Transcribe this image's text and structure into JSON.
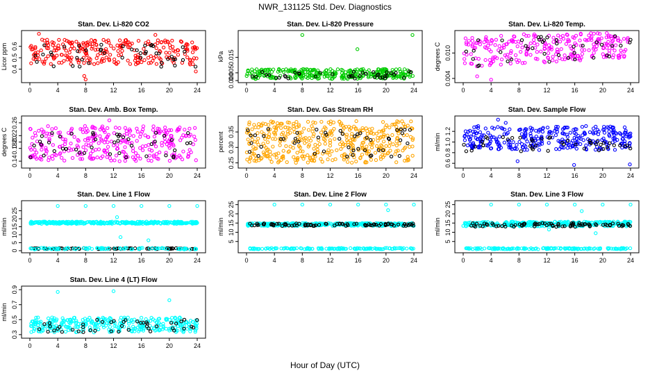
{
  "title": "NWR_131125  Std. Dev. Diagnostics",
  "xlabel": "Hour of Day (UTC)",
  "chart_data": [
    {
      "type": "scatter",
      "title": "Stan. Dev. Li-820 CO2",
      "ylabel": "Licor ppm",
      "color": "#ff0000",
      "xlim": [
        0,
        24
      ],
      "xticks": [
        "0",
        "4",
        "8",
        "12",
        "16",
        "20",
        "24"
      ],
      "ylim": [
        0.3,
        0.72
      ],
      "yticks": [
        {
          "v": 0.4,
          "label": "0.4"
        },
        {
          "v": 0.5,
          "label": "0.5"
        },
        {
          "v": 0.6,
          "label": "0.6"
        }
      ],
      "bands": [
        {
          "lo": 0.44,
          "hi": 0.66,
          "n": 260,
          "color": "#ff0000"
        },
        {
          "lo": 0.42,
          "hi": 0.62,
          "n": 45,
          "color": "#000000"
        }
      ],
      "outliers": [
        {
          "x": 1.3,
          "y": 0.71
        },
        {
          "x": 8.0,
          "y": 0.31
        },
        {
          "x": 7.8,
          "y": 0.34
        },
        {
          "x": 23.8,
          "y": 0.38
        },
        {
          "x": 18.0,
          "y": 0.7
        }
      ]
    },
    {
      "type": "scatter",
      "title": "Stan. Dev. Li-820 Pressure",
      "ylabel": "kPa",
      "color": "#00cc00",
      "xlim": [
        0,
        24
      ],
      "xticks": [
        "0",
        "4",
        "8",
        "12",
        "16",
        "20",
        "24"
      ],
      "ylim": [
        0,
        0.031
      ],
      "yticks": [
        {
          "v": 0,
          "label": "0.000"
        },
        {
          "v": 0.005,
          "label": "0.005"
        },
        {
          "v": 0.015,
          "label": "0.015"
        }
      ],
      "bands": [
        {
          "lo": 0.001,
          "hi": 0.0075,
          "n": 300,
          "color": "#00cc00"
        },
        {
          "lo": 0.001,
          "hi": 0.006,
          "n": 40,
          "color": "#000000"
        }
      ],
      "outliers": [
        {
          "x": 8.0,
          "y": 0.0295
        },
        {
          "x": 15.9,
          "y": 0.0203
        },
        {
          "x": 23.8,
          "y": 0.0295
        }
      ]
    },
    {
      "type": "scatter",
      "title": "Stan. Dev. Li-820 Temp.",
      "ylabel": "degrees C",
      "color": "#ff00ff",
      "xlim": [
        0,
        24
      ],
      "xticks": [
        "0",
        "4",
        "8",
        "12",
        "16",
        "20",
        "24"
      ],
      "ylim": [
        0.0035,
        0.0148
      ],
      "yticks": [
        {
          "v": 0.004,
          "label": "0.004"
        },
        {
          "v": 0.01,
          "label": "0.010"
        }
      ],
      "bands": [
        {
          "lo": 0.0065,
          "hi": 0.0135,
          "n": 260,
          "color": "#ff00ff",
          "trend": 0.0025
        },
        {
          "lo": 0.0065,
          "hi": 0.013,
          "n": 40,
          "color": "#000000",
          "trend": 0.0025
        }
      ],
      "outliers": [
        {
          "x": 2.0,
          "y": 0.0045
        },
        {
          "x": 4.0,
          "y": 0.0037
        }
      ]
    },
    {
      "type": "scatter",
      "title": "Stan. Dev. Amb. Box Temp.",
      "ylabel": "degrees C",
      "color": "#ff00ff",
      "xlim": [
        0,
        24
      ],
      "xticks": [
        "0",
        "4",
        "8",
        "12",
        "16",
        "20",
        "24"
      ],
      "ylim": [
        0.125,
        0.275
      ],
      "yticks": [
        {
          "v": 0.14,
          "label": "0.14"
        },
        {
          "v": 0.18,
          "label": "0.18"
        },
        {
          "v": 0.2,
          "label": "0.20"
        },
        {
          "v": 0.22,
          "label": "0.22"
        },
        {
          "v": 0.26,
          "label": "0.26"
        }
      ],
      "bands": [
        {
          "lo": 0.14,
          "hi": 0.25,
          "n": 300,
          "color": "#ff00ff"
        },
        {
          "lo": 0.15,
          "hi": 0.23,
          "n": 45,
          "color": "#000000"
        }
      ],
      "outliers": [
        {
          "x": 11.4,
          "y": 0.268
        }
      ]
    },
    {
      "type": "scatter",
      "title": "Stan. Dev. Gas Stream RH",
      "ylabel": "percent",
      "color": "#ffa500",
      "xlim": [
        0,
        24
      ],
      "xticks": [
        "0",
        "4",
        "8",
        "12",
        "16",
        "20",
        "24"
      ],
      "ylim": [
        0.24,
        0.395
      ],
      "yticks": [
        {
          "v": 0.25,
          "label": "0.25"
        },
        {
          "v": 0.3,
          "label": "0.30"
        },
        {
          "v": 0.35,
          "label": "0.35"
        }
      ],
      "bands": [
        {
          "lo": 0.25,
          "hi": 0.385,
          "n": 420,
          "color": "#ffa500"
        },
        {
          "lo": 0.27,
          "hi": 0.36,
          "n": 50,
          "color": "#000000"
        }
      ],
      "outliers": []
    },
    {
      "type": "scatter",
      "title": "Stan. Dev. Sample Flow",
      "ylabel": "ml/min",
      "color": "#0000ff",
      "xlim": [
        0,
        24
      ],
      "xticks": [
        "0",
        "4",
        "8",
        "12",
        "16",
        "20",
        "24"
      ],
      "ylim": [
        0.55,
        1.45
      ],
      "yticks": [
        {
          "v": 0.6,
          "label": "0.6"
        },
        {
          "v": 0.8,
          "label": "0.8"
        },
        {
          "v": 1.0,
          "label": "1.0"
        },
        {
          "v": 1.2,
          "label": "1.2"
        }
      ],
      "bands": [
        {
          "lo": 0.85,
          "hi": 1.3,
          "n": 320,
          "color": "#0000ff"
        },
        {
          "lo": 0.82,
          "hi": 1.1,
          "n": 45,
          "color": "#000000"
        }
      ],
      "outliers": [
        {
          "x": 5.0,
          "y": 1.42
        },
        {
          "x": 6.1,
          "y": 1.36
        },
        {
          "x": 7.8,
          "y": 0.64
        },
        {
          "x": 15.9,
          "y": 0.57
        },
        {
          "x": 23.9,
          "y": 0.58
        }
      ]
    },
    {
      "type": "scatter",
      "title": "Stan. Dev. Line 1 Flow",
      "ylabel": "ml/min",
      "color": "#00ffff",
      "xlim": [
        0,
        24
      ],
      "xticks": [
        "0",
        "4",
        "8",
        "12",
        "16",
        "20",
        "24"
      ],
      "ylim": [
        0,
        30
      ],
      "yticks": [
        {
          "v": 0,
          "label": "0"
        },
        {
          "v": 5,
          "label": "5"
        },
        {
          "v": 10,
          "label": "10"
        },
        {
          "v": 15,
          "label": "15"
        },
        {
          "v": 20,
          "label": "20"
        },
        {
          "v": 25,
          "label": "25"
        }
      ],
      "bands": [
        {
          "lo": 16.8,
          "hi": 18.2,
          "n": 320,
          "color": "#00ffff"
        },
        {
          "lo": 1.0,
          "hi": 1.6,
          "n": 90,
          "color": "#000000"
        },
        {
          "lo": 0.8,
          "hi": 1.8,
          "n": 90,
          "color": "#00ffff"
        }
      ],
      "outliers": [
        {
          "x": 4.0,
          "y": 28
        },
        {
          "x": 8.0,
          "y": 28
        },
        {
          "x": 12.0,
          "y": 28
        },
        {
          "x": 16.0,
          "y": 28
        },
        {
          "x": 20.0,
          "y": 28
        },
        {
          "x": 24.0,
          "y": 28
        },
        {
          "x": 12.5,
          "y": 21
        },
        {
          "x": 13.0,
          "y": 8.5
        },
        {
          "x": 17.0,
          "y": 6.5
        }
      ]
    },
    {
      "type": "scatter",
      "title": "Stan. Dev. Line 2 Flow",
      "ylabel": "ml/min",
      "color": "#00ffff",
      "xlim": [
        0,
        24
      ],
      "xticks": [
        "0",
        "4",
        "8",
        "12",
        "16",
        "20",
        "24"
      ],
      "ylim": [
        0,
        26
      ],
      "yticks": [
        {
          "v": 5,
          "label": "5"
        },
        {
          "v": 10,
          "label": "10"
        },
        {
          "v": 15,
          "label": "15"
        },
        {
          "v": 20,
          "label": "20"
        },
        {
          "v": 25,
          "label": "25"
        }
      ],
      "bands": [
        {
          "lo": 13.4,
          "hi": 15.0,
          "n": 320,
          "color": "#00ffff"
        },
        {
          "lo": 13.4,
          "hi": 14.8,
          "n": 80,
          "color": "#000000"
        },
        {
          "lo": 0.8,
          "hi": 1.5,
          "n": 140,
          "color": "#00ffff"
        }
      ],
      "outliers": [
        {
          "x": 4.0,
          "y": 25
        },
        {
          "x": 8.0,
          "y": 25
        },
        {
          "x": 12.0,
          "y": 25
        },
        {
          "x": 16.0,
          "y": 25
        },
        {
          "x": 20.0,
          "y": 25
        },
        {
          "x": 24.0,
          "y": 25
        },
        {
          "x": 20.3,
          "y": 22
        }
      ]
    },
    {
      "type": "scatter",
      "title": "Stan. Dev. Line 3 Flow",
      "ylabel": "ml/min",
      "color": "#00ffff",
      "xlim": [
        0,
        24
      ],
      "xticks": [
        "0",
        "4",
        "8",
        "12",
        "16",
        "20",
        "24"
      ],
      "ylim": [
        0,
        26
      ],
      "yticks": [
        {
          "v": 5,
          "label": "5"
        },
        {
          "v": 10,
          "label": "10"
        },
        {
          "v": 15,
          "label": "15"
        },
        {
          "v": 20,
          "label": "20"
        },
        {
          "v": 25,
          "label": "25"
        }
      ],
      "bands": [
        {
          "lo": 13.2,
          "hi": 15.8,
          "n": 320,
          "color": "#00ffff"
        },
        {
          "lo": 13.0,
          "hi": 15.0,
          "n": 80,
          "color": "#000000"
        },
        {
          "lo": 0.8,
          "hi": 1.5,
          "n": 140,
          "color": "#00ffff"
        }
      ],
      "outliers": [
        {
          "x": 4.0,
          "y": 25
        },
        {
          "x": 8.0,
          "y": 25
        },
        {
          "x": 12.0,
          "y": 25
        },
        {
          "x": 16.0,
          "y": 25
        },
        {
          "x": 20.0,
          "y": 25
        },
        {
          "x": 24.0,
          "y": 25
        },
        {
          "x": 12.3,
          "y": 11.5
        },
        {
          "x": 17.0,
          "y": 21.5
        },
        {
          "x": 19.0,
          "y": 9.5
        }
      ]
    },
    {
      "type": "scatter",
      "title": "Stan. Dev. Line 4 (LT) Flow",
      "ylabel": "ml/min",
      "color": "#00ffff",
      "xlim": [
        0,
        24
      ],
      "xticks": [
        "0",
        "4",
        "8",
        "12",
        "16",
        "20",
        "24"
      ],
      "ylim": [
        0.28,
        0.92
      ],
      "yticks": [
        {
          "v": 0.3,
          "label": "0.3"
        },
        {
          "v": 0.5,
          "label": "0.5"
        },
        {
          "v": 0.7,
          "label": "0.7"
        },
        {
          "v": 0.9,
          "label": "0.9"
        }
      ],
      "bands": [
        {
          "lo": 0.33,
          "hi": 0.53,
          "n": 320,
          "color": "#00ffff"
        },
        {
          "lo": 0.33,
          "hi": 0.5,
          "n": 45,
          "color": "#000000"
        }
      ],
      "outliers": [
        {
          "x": 4.0,
          "y": 0.87
        },
        {
          "x": 12.0,
          "y": 0.88
        },
        {
          "x": 20.0,
          "y": 0.76
        }
      ]
    }
  ]
}
